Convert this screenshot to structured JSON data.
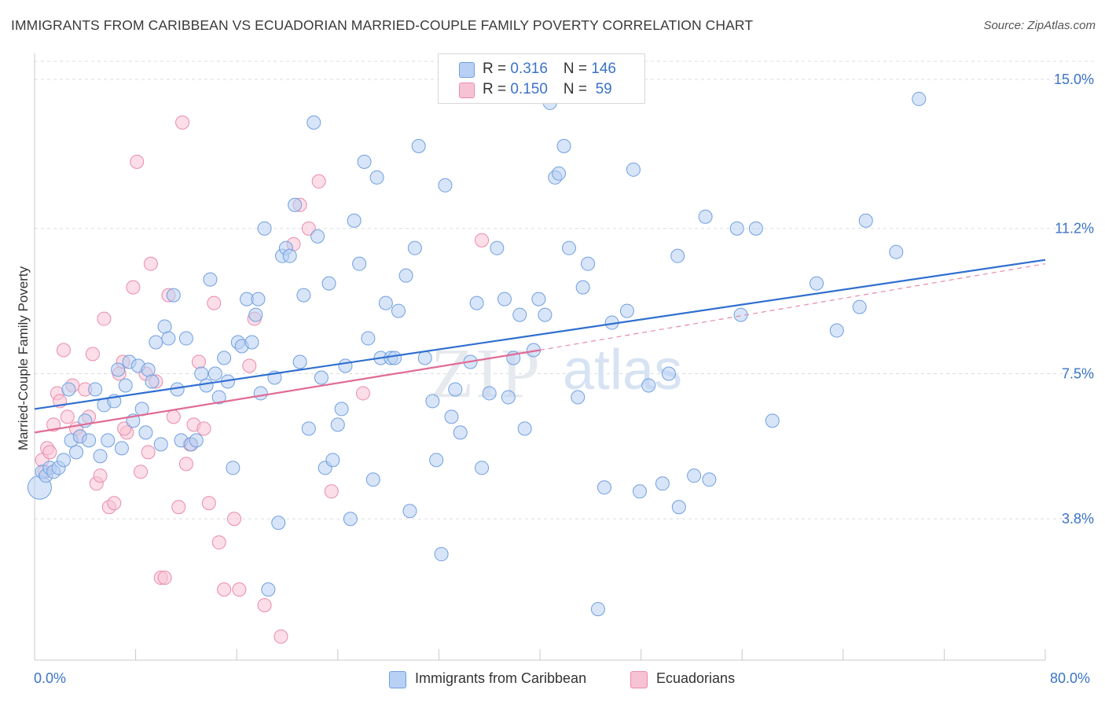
{
  "title": "IMMIGRANTS FROM CARIBBEAN VS ECUADORIAN MARRIED-COUPLE FAMILY POVERTY CORRELATION CHART",
  "source": "Source: ZipAtlas.com",
  "watermark": {
    "zip": "ZIP",
    "atlas": "atlas"
  },
  "colors": {
    "blue": "#6f9fe0",
    "blue_fill": "#b8d0f3",
    "pink": "#eb8aac",
    "pink_fill": "#f7c3d4",
    "blue_line": "#2f6fcf",
    "pink_line": "#e06b94",
    "axis_text": "#3b73c6"
  },
  "legend": {
    "series": [
      {
        "r_label": "R = ",
        "r_value": "0.316",
        "n_label": "N = ",
        "n_value": "146",
        "color": "#b8d0f3"
      },
      {
        "r_label": "R = ",
        "r_value": "0.150",
        "n_label": "N = ",
        "n_value": " 59",
        "color": "#f7c3d4"
      }
    ]
  },
  "chart_data": {
    "type": "scatter",
    "title": "IMMIGRANTS FROM CARIBBEAN VS ECUADORIAN MARRIED-COUPLE FAMILY POVERTY CORRELATION CHART",
    "xlabel": "",
    "ylabel": "Married-Couple Family Poverty",
    "x_tick_labels": [
      "0.0%",
      "80.0%"
    ],
    "y_tick_labels": [
      "3.8%",
      "7.5%",
      "11.2%",
      "15.0%"
    ],
    "y_ticks": [
      3.8,
      7.5,
      11.2,
      15.0
    ],
    "xlim": [
      0,
      80
    ],
    "ylim": [
      0.2,
      15.5
    ],
    "grid": true,
    "legend_position": "top-center",
    "series": [
      {
        "name": "Immigrants from Caribbean",
        "color": "#6f9fe0",
        "trend": {
          "x": [
            0,
            80
          ],
          "y": [
            6.6,
            10.4
          ],
          "style": "solid"
        },
        "points": [
          [
            0.4,
            4.6
          ],
          [
            0.6,
            5.0
          ],
          [
            0.9,
            4.9
          ],
          [
            1.2,
            5.1
          ],
          [
            1.5,
            5.0
          ],
          [
            1.9,
            5.1
          ],
          [
            2.3,
            5.3
          ],
          [
            2.7,
            7.1
          ],
          [
            2.9,
            5.8
          ],
          [
            3.3,
            5.5
          ],
          [
            3.6,
            5.9
          ],
          [
            4.0,
            6.3
          ],
          [
            4.3,
            5.8
          ],
          [
            4.8,
            7.1
          ],
          [
            5.2,
            5.4
          ],
          [
            5.5,
            6.7
          ],
          [
            5.8,
            5.8
          ],
          [
            6.3,
            6.8
          ],
          [
            6.6,
            7.6
          ],
          [
            6.9,
            5.6
          ],
          [
            7.2,
            7.2
          ],
          [
            7.5,
            7.8
          ],
          [
            7.8,
            6.3
          ],
          [
            8.2,
            7.7
          ],
          [
            8.5,
            6.6
          ],
          [
            8.8,
            6.0
          ],
          [
            9.0,
            7.6
          ],
          [
            9.3,
            7.3
          ],
          [
            9.6,
            8.3
          ],
          [
            10.0,
            5.7
          ],
          [
            10.3,
            8.7
          ],
          [
            10.6,
            8.4
          ],
          [
            11.0,
            9.5
          ],
          [
            11.3,
            7.1
          ],
          [
            11.6,
            5.8
          ],
          [
            12.0,
            8.4
          ],
          [
            12.4,
            5.7
          ],
          [
            12.8,
            5.8
          ],
          [
            13.2,
            7.5
          ],
          [
            13.6,
            7.2
          ],
          [
            13.9,
            9.9
          ],
          [
            14.3,
            7.5
          ],
          [
            14.6,
            6.9
          ],
          [
            15.0,
            7.9
          ],
          [
            15.3,
            7.3
          ],
          [
            15.7,
            5.1
          ],
          [
            16.1,
            8.3
          ],
          [
            16.4,
            8.2
          ],
          [
            16.8,
            9.4
          ],
          [
            17.2,
            8.3
          ],
          [
            17.5,
            9.0
          ],
          [
            17.7,
            9.4
          ],
          [
            17.9,
            7.0
          ],
          [
            18.2,
            11.2
          ],
          [
            18.5,
            2.0
          ],
          [
            19.0,
            7.4
          ],
          [
            19.3,
            3.7
          ],
          [
            19.6,
            10.5
          ],
          [
            19.9,
            10.7
          ],
          [
            20.2,
            10.5
          ],
          [
            20.6,
            11.8
          ],
          [
            21.0,
            7.8
          ],
          [
            21.3,
            9.5
          ],
          [
            21.7,
            6.1
          ],
          [
            22.1,
            13.9
          ],
          [
            22.4,
            11.0
          ],
          [
            22.7,
            7.4
          ],
          [
            23.0,
            5.1
          ],
          [
            23.3,
            9.8
          ],
          [
            23.6,
            5.3
          ],
          [
            24.0,
            6.2
          ],
          [
            24.3,
            6.6
          ],
          [
            24.6,
            7.7
          ],
          [
            25.0,
            3.8
          ],
          [
            25.3,
            11.4
          ],
          [
            25.7,
            10.3
          ],
          [
            26.1,
            12.9
          ],
          [
            26.4,
            8.4
          ],
          [
            26.8,
            4.8
          ],
          [
            27.1,
            12.5
          ],
          [
            27.4,
            7.9
          ],
          [
            27.8,
            9.3
          ],
          [
            28.2,
            7.9
          ],
          [
            28.5,
            7.9
          ],
          [
            28.8,
            9.1
          ],
          [
            29.4,
            10.0
          ],
          [
            29.7,
            4.0
          ],
          [
            30.1,
            10.7
          ],
          [
            30.4,
            13.3
          ],
          [
            30.9,
            7.9
          ],
          [
            31.5,
            6.8
          ],
          [
            31.8,
            5.3
          ],
          [
            32.2,
            2.9
          ],
          [
            32.5,
            12.3
          ],
          [
            33.0,
            6.4
          ],
          [
            33.3,
            7.1
          ],
          [
            33.7,
            6.0
          ],
          [
            34.5,
            7.8
          ],
          [
            35.0,
            9.3
          ],
          [
            35.4,
            5.1
          ],
          [
            36.0,
            7.0
          ],
          [
            36.6,
            10.7
          ],
          [
            37.2,
            9.4
          ],
          [
            37.5,
            6.9
          ],
          [
            37.9,
            7.9
          ],
          [
            38.4,
            9.0
          ],
          [
            38.8,
            6.1
          ],
          [
            39.5,
            8.1
          ],
          [
            39.9,
            9.4
          ],
          [
            40.4,
            9.0
          ],
          [
            40.8,
            14.4
          ],
          [
            41.2,
            12.5
          ],
          [
            41.5,
            12.6
          ],
          [
            41.9,
            13.3
          ],
          [
            42.3,
            10.7
          ],
          [
            43.0,
            6.9
          ],
          [
            43.4,
            9.7
          ],
          [
            43.8,
            10.3
          ],
          [
            44.6,
            1.5
          ],
          [
            45.1,
            4.6
          ],
          [
            45.7,
            8.8
          ],
          [
            46.9,
            9.1
          ],
          [
            47.4,
            12.7
          ],
          [
            47.9,
            4.5
          ],
          [
            48.6,
            7.2
          ],
          [
            49.7,
            4.7
          ],
          [
            50.2,
            7.5
          ],
          [
            50.9,
            10.5
          ],
          [
            51.0,
            4.1
          ],
          [
            52.2,
            4.9
          ],
          [
            53.1,
            11.5
          ],
          [
            53.4,
            4.8
          ],
          [
            55.6,
            11.2
          ],
          [
            55.9,
            9.0
          ],
          [
            57.1,
            11.2
          ],
          [
            58.4,
            6.3
          ],
          [
            61.9,
            9.8
          ],
          [
            65.3,
            9.2
          ],
          [
            65.8,
            11.4
          ],
          [
            68.2,
            10.6
          ],
          [
            70.0,
            14.5
          ],
          [
            63.5,
            8.6
          ]
        ]
      },
      {
        "name": "Ecuadorians",
        "color": "#eb8aac",
        "trend": {
          "x": [
            0,
            40
          ],
          "y": [
            6.0,
            8.1
          ],
          "style": "solid",
          "extension": {
            "x": [
              40,
              80
            ],
            "y": [
              8.1,
              10.3
            ],
            "style": "dashed"
          }
        },
        "points": [
          [
            0.6,
            5.3
          ],
          [
            0.8,
            5.0
          ],
          [
            1.0,
            5.6
          ],
          [
            1.2,
            5.5
          ],
          [
            1.5,
            6.2
          ],
          [
            1.8,
            7.0
          ],
          [
            2.0,
            6.8
          ],
          [
            2.3,
            8.1
          ],
          [
            2.6,
            6.4
          ],
          [
            3.0,
            7.2
          ],
          [
            3.3,
            6.1
          ],
          [
            3.6,
            5.9
          ],
          [
            4.0,
            7.1
          ],
          [
            4.3,
            6.4
          ],
          [
            4.6,
            8.0
          ],
          [
            4.9,
            4.7
          ],
          [
            5.2,
            4.9
          ],
          [
            5.5,
            8.9
          ],
          [
            5.9,
            4.1
          ],
          [
            6.3,
            4.2
          ],
          [
            6.7,
            7.5
          ],
          [
            7.0,
            7.8
          ],
          [
            7.3,
            6.0
          ],
          [
            7.8,
            9.7
          ],
          [
            8.1,
            12.9
          ],
          [
            8.4,
            5.0
          ],
          [
            8.8,
            7.5
          ],
          [
            9.0,
            5.5
          ],
          [
            9.2,
            10.3
          ],
          [
            9.6,
            7.3
          ],
          [
            10.0,
            2.3
          ],
          [
            10.3,
            2.3
          ],
          [
            10.6,
            9.5
          ],
          [
            11.0,
            6.4
          ],
          [
            11.4,
            4.1
          ],
          [
            11.7,
            13.9
          ],
          [
            12.0,
            5.2
          ],
          [
            12.3,
            5.7
          ],
          [
            12.6,
            6.2
          ],
          [
            13.0,
            7.8
          ],
          [
            13.4,
            6.1
          ],
          [
            13.8,
            4.2
          ],
          [
            14.2,
            9.3
          ],
          [
            14.6,
            3.2
          ],
          [
            15.0,
            2.0
          ],
          [
            15.8,
            3.8
          ],
          [
            16.2,
            2.0
          ],
          [
            17.0,
            7.7
          ],
          [
            17.4,
            8.9
          ],
          [
            18.2,
            1.6
          ],
          [
            19.5,
            0.8
          ],
          [
            20.5,
            10.8
          ],
          [
            21.0,
            11.8
          ],
          [
            21.7,
            11.2
          ],
          [
            22.5,
            12.4
          ],
          [
            23.5,
            4.5
          ],
          [
            26.0,
            7.0
          ],
          [
            35.4,
            10.9
          ],
          [
            7.1,
            6.1
          ]
        ]
      }
    ]
  },
  "bottom_legend": {
    "series1": "Immigrants from Caribbean",
    "series2": "Ecuadorians"
  },
  "x_axis": {
    "min_label": "0.0%",
    "max_label": "80.0%"
  }
}
